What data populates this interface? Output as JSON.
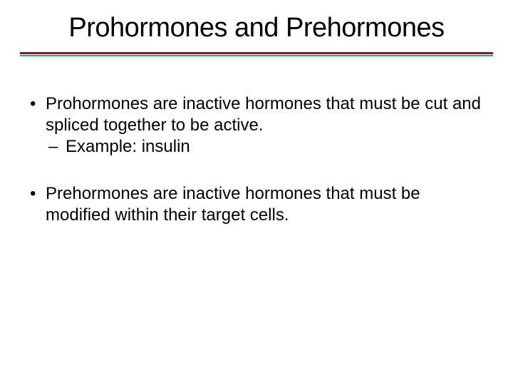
{
  "title": "Prohormones and Prehormones",
  "divider": {
    "top_color": "#c00000",
    "bottom_color": "#2f9e9e"
  },
  "bullets": {
    "b1": "Prohormones are inactive hormones that must be cut and spliced together to be active.",
    "b1_sub": "Example: insulin",
    "b2": "Prehormones are inactive hormones that must be modified within their target cells."
  },
  "markers": {
    "l1": "•",
    "l2": "–"
  },
  "text_color": "#000000",
  "background_color": "#ffffff",
  "title_fontsize": 38,
  "body_fontsize": 24
}
